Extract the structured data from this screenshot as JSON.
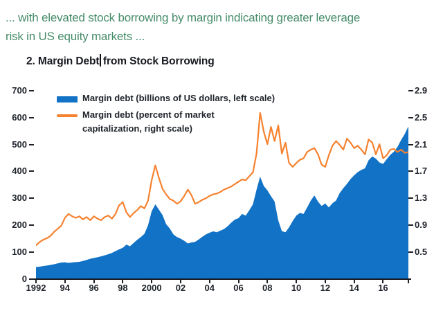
{
  "caption": {
    "line1": "... with elevated stock borrowing by margin indicating greater leverage",
    "line2": "risk in US equity markets ...",
    "color": "#468c69"
  },
  "figure": {
    "title_before_cursor": "2. Margin Debt",
    "title_after_cursor": "from Stock Borrowing"
  },
  "legend": {
    "items": [
      {
        "swatch": "bar",
        "label": "Margin debt (billions of US dollars, left scale)"
      },
      {
        "swatch": "line",
        "label_line1": "Margin debt (percent of market",
        "label_line2": "capitalization, right scale)"
      }
    ]
  },
  "chart_data": {
    "type": "area",
    "title": "2. Margin Debt from Stock Borrowing",
    "x_start": 1992,
    "x_step": 0.25,
    "x_end": 2017.75,
    "grid": false,
    "legend_position": "top-left-inside",
    "left_axis": {
      "min": 0,
      "max": 700,
      "ticks": [
        "700",
        "600",
        "500",
        "400",
        "300",
        "200",
        "100",
        "0"
      ]
    },
    "right_axis": {
      "min": 0.5,
      "max": 2.9,
      "ticks": [
        "2.9",
        "2.5",
        "2.1",
        "1.7",
        "1.3",
        "0.9",
        "0.5"
      ]
    },
    "x_axis": {
      "tick_years": [
        1992,
        1994,
        1996,
        1998,
        2000,
        2002,
        2004,
        2006,
        2008,
        2010,
        2012,
        2014,
        2016,
        2018
      ],
      "labels": [
        "1992",
        "94",
        "96",
        "98",
        "2000",
        "02",
        "04",
        "06",
        "08",
        "10",
        "12",
        "14",
        "16"
      ]
    },
    "series": [
      {
        "name": "Margin debt (billions of US dollars, left scale)",
        "type": "area",
        "axis": "left",
        "color": "#1273c6",
        "values": [
          44,
          46,
          48,
          50,
          52,
          55,
          58,
          61,
          62,
          60,
          61,
          63,
          64,
          67,
          71,
          75,
          78,
          81,
          84,
          88,
          92,
          97,
          104,
          110,
          116,
          128,
          122,
          134,
          146,
          156,
          168,
          200,
          252,
          278,
          258,
          238,
          204,
          188,
          166,
          156,
          150,
          142,
          132,
          136,
          138,
          147,
          157,
          166,
          172,
          177,
          174,
          180,
          186,
          196,
          210,
          221,
          226,
          242,
          236,
          256,
          278,
          332,
          381,
          346,
          330,
          308,
          288,
          218,
          178,
          174,
          192,
          216,
          236,
          246,
          242,
          266,
          292,
          311,
          288,
          272,
          281,
          266,
          282,
          292,
          320,
          338,
          354,
          372,
          386,
          398,
          406,
          412,
          442,
          456,
          448,
          434,
          428,
          446,
          462,
          474,
          492,
          518,
          540,
          568
        ]
      },
      {
        "name": "Margin debt (percent of market capitalization, right scale)",
        "type": "line",
        "axis": "right",
        "color": "#f5822f",
        "values": [
          0.93,
          0.97,
          1.0,
          1.02,
          1.05,
          1.1,
          1.14,
          1.18,
          1.28,
          1.33,
          1.3,
          1.28,
          1.3,
          1.26,
          1.29,
          1.25,
          1.3,
          1.27,
          1.25,
          1.29,
          1.31,
          1.27,
          1.33,
          1.44,
          1.48,
          1.35,
          1.29,
          1.34,
          1.38,
          1.43,
          1.4,
          1.5,
          1.76,
          1.95,
          1.79,
          1.65,
          1.58,
          1.52,
          1.5,
          1.46,
          1.49,
          1.56,
          1.64,
          1.57,
          1.46,
          1.48,
          1.51,
          1.53,
          1.56,
          1.58,
          1.59,
          1.61,
          1.64,
          1.66,
          1.68,
          1.71,
          1.74,
          1.77,
          1.76,
          1.81,
          1.86,
          2.1,
          2.62,
          2.38,
          2.22,
          2.44,
          2.26,
          2.46,
          2.1,
          2.24,
          1.98,
          1.93,
          1.98,
          2.02,
          2.04,
          2.12,
          2.15,
          2.17,
          2.09,
          1.96,
          1.93,
          2.08,
          2.2,
          2.26,
          2.21,
          2.15,
          2.29,
          2.24,
          2.17,
          2.2,
          2.15,
          2.09,
          2.28,
          2.24,
          2.09,
          2.22,
          2.04,
          2.08,
          2.15,
          2.16,
          2.12,
          2.15,
          2.11,
          2.12
        ]
      }
    ]
  }
}
